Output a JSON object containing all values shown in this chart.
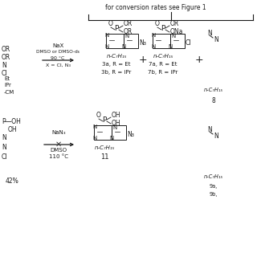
{
  "bg_color": "#ffffff",
  "text_color": "#1a1a1a",
  "fig_width": 3.2,
  "fig_height": 3.2,
  "dpi": 100,
  "brace_label": "for conversion rates see Figure 1",
  "top_conditions": [
    "NaX",
    "DMSO or DMSO-d₆",
    "90 °C",
    "X = Cl, N₃"
  ],
  "bottom_conditions": [
    "NaN₃",
    "DMSO",
    "110 °C"
  ],
  "product3_labels": [
    "3a, R = Et",
    "3b, R = iPr"
  ],
  "product7_labels": [
    "7a, R = Et",
    "7b, R = iPr"
  ],
  "product8_label": "8",
  "product11_label": "11",
  "product9_labels": [
    "9a,",
    "9b,"
  ],
  "yield_label": "42%",
  "nC7H15": "n-C₇H₁₅",
  "cm_label": "-CM"
}
